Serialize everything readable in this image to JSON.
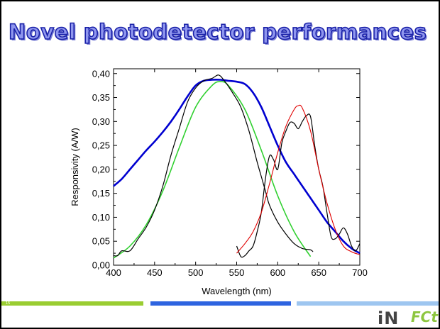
{
  "slide": {
    "title": "Novel  photodetector performances",
    "page_number": "15",
    "logo_left": "iN",
    "logo_right": "FCt"
  },
  "colors": {
    "title_fill": "#8f96ee",
    "title_stroke": "#1a21a8",
    "footer_green": "#9acd32",
    "footer_blue": "#2e64e0",
    "footer_lightblue": "#9ec6f0"
  },
  "chart_data": {
    "type": "line",
    "xlabel": "Wavelength (nm)",
    "ylabel": "Responsivity (A/W)",
    "xlim": [
      400,
      700
    ],
    "ylim": [
      0,
      0.41
    ],
    "xticks": [
      "400",
      "450",
      "500",
      "550",
      "600",
      "650",
      "700"
    ],
    "yticks": [
      "0,00",
      "0,05",
      "0,10",
      "0,15",
      "0,20",
      "0,25",
      "0,30",
      "0,35",
      "0,40"
    ],
    "grid": false,
    "series": [
      {
        "color": "#0000d0",
        "x": [
          400,
          410,
          420,
          430,
          440,
          450,
          460,
          470,
          480,
          490,
          500,
          510,
          520,
          530,
          540,
          550,
          560,
          570,
          580,
          590,
          600,
          610,
          620,
          630,
          640,
          650,
          660,
          670,
          680,
          690,
          700
        ],
        "y": [
          0.165,
          0.18,
          0.2,
          0.22,
          0.24,
          0.258,
          0.278,
          0.3,
          0.325,
          0.352,
          0.375,
          0.385,
          0.387,
          0.387,
          0.385,
          0.383,
          0.378,
          0.36,
          0.33,
          0.29,
          0.25,
          0.215,
          0.19,
          0.165,
          0.14,
          0.115,
          0.09,
          0.07,
          0.05,
          0.035,
          0.025
        ]
      },
      {
        "color": "#30d030",
        "x": [
          400,
          420,
          440,
          460,
          480,
          500,
          520,
          530,
          540,
          560,
          580,
          600,
          620,
          640
        ],
        "y": [
          0.015,
          0.04,
          0.085,
          0.155,
          0.245,
          0.33,
          0.375,
          0.383,
          0.375,
          0.325,
          0.24,
          0.145,
          0.07,
          0.018
        ]
      },
      {
        "color": "#000000",
        "x": [
          400,
          405,
          410,
          420,
          430,
          440,
          450,
          460,
          470,
          480,
          490,
          500,
          510,
          520,
          528,
          535,
          545,
          555,
          565,
          575,
          580,
          585,
          590,
          600,
          610,
          620,
          630,
          640,
          643
        ],
        "y": [
          0.02,
          0.02,
          0.03,
          0.03,
          0.055,
          0.08,
          0.115,
          0.165,
          0.23,
          0.285,
          0.34,
          0.37,
          0.385,
          0.39,
          0.397,
          0.385,
          0.36,
          0.33,
          0.28,
          0.215,
          0.185,
          0.155,
          0.125,
          0.09,
          0.065,
          0.045,
          0.035,
          0.032,
          0.028
        ]
      },
      {
        "color": "#000000",
        "x": [
          550,
          555,
          560,
          565,
          570,
          575,
          580,
          585,
          590,
          595,
          600,
          605,
          610,
          615,
          620,
          625,
          630,
          635,
          640,
          645,
          650,
          655,
          660,
          665,
          670,
          675,
          680,
          685,
          690,
          695,
          700
        ],
        "y": [
          0.04,
          0.018,
          0.02,
          0.03,
          0.04,
          0.07,
          0.11,
          0.18,
          0.228,
          0.22,
          0.2,
          0.255,
          0.28,
          0.298,
          0.296,
          0.285,
          0.3,
          0.312,
          0.31,
          0.25,
          0.2,
          0.165,
          0.11,
          0.06,
          0.055,
          0.065,
          0.078,
          0.065,
          0.04,
          0.03,
          0.045
        ]
      },
      {
        "color": "#e00000",
        "x": [
          550,
          560,
          570,
          580,
          590,
          600,
          610,
          620,
          625,
          630,
          640,
          650,
          660,
          670,
          680,
          690,
          700
        ],
        "y": [
          0.025,
          0.045,
          0.07,
          0.11,
          0.17,
          0.235,
          0.29,
          0.325,
          0.333,
          0.328,
          0.28,
          0.2,
          0.13,
          0.075,
          0.04,
          0.028,
          0.022
        ]
      }
    ]
  }
}
